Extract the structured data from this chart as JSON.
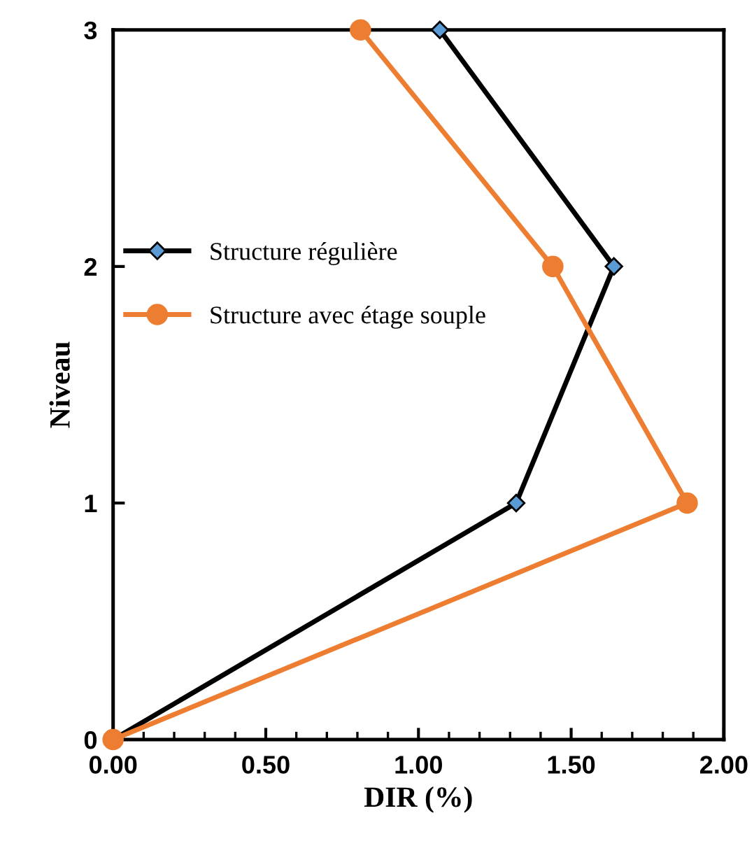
{
  "chart_data": {
    "type": "line",
    "xlabel": "DIR (%)",
    "ylabel": "Niveau",
    "xlim": [
      0,
      2
    ],
    "xticks": [
      {
        "value": 0,
        "label": "0.00"
      },
      {
        "value": 0.5,
        "label": "0.50"
      },
      {
        "value": 1,
        "label": "1.00"
      },
      {
        "value": 1.5,
        "label": "1.50"
      },
      {
        "value": 2,
        "label": "2.00"
      }
    ],
    "ylim": [
      0,
      3
    ],
    "yticks": [
      0,
      1,
      2,
      3
    ],
    "grid": false,
    "legend": "left",
    "series": [
      {
        "name": "Structure régulière",
        "color": "#000000",
        "marker": "diamond",
        "x": [
          0,
          1.32,
          1.64,
          1.07
        ],
        "values": [
          0,
          1,
          2,
          3
        ]
      },
      {
        "name": "Structure avec étage souple",
        "color": "#ed7d31",
        "marker": "circle",
        "x": [
          0,
          1.88,
          1.44,
          0.81
        ],
        "values": [
          0,
          1,
          2,
          3
        ]
      }
    ]
  }
}
